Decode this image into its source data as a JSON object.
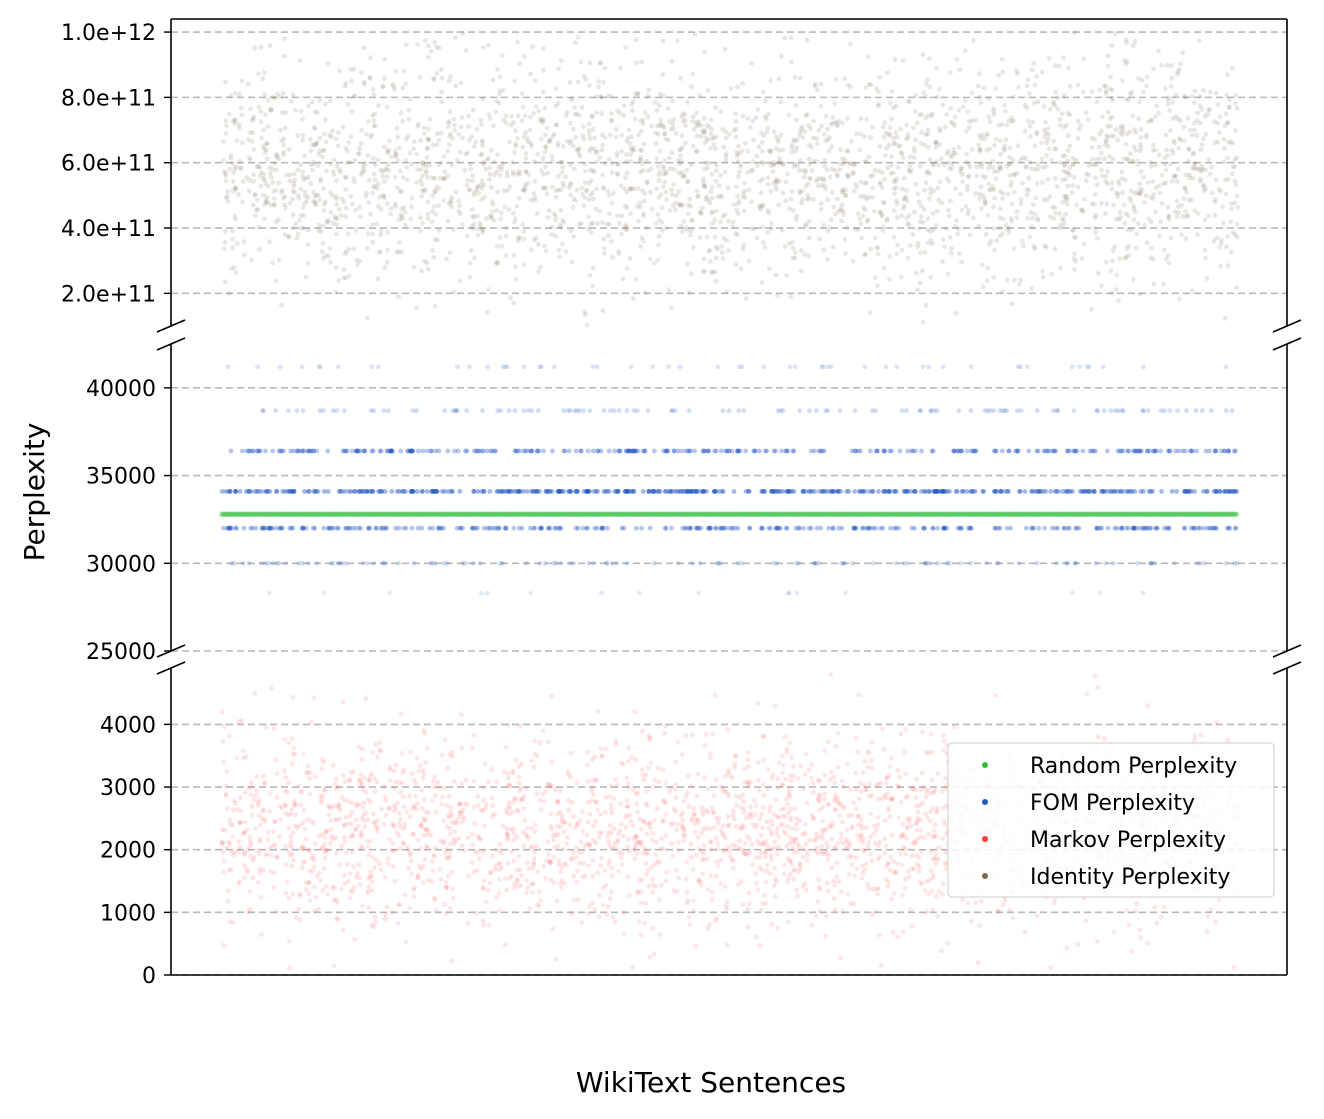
{
  "chart_data": {
    "type": "scatter",
    "ylabel": "Perplexity",
    "xlabel": "WikiText Sentences",
    "broken_axis": true,
    "grid": "horizontal dashed",
    "legend_position": "lower-right",
    "panels": [
      {
        "id": "top",
        "ylim": [
          100000000000,
          1040000000000
        ],
        "tick_values": [
          200000000000,
          400000000000,
          600000000000,
          800000000000,
          1000000000000
        ],
        "tick_labels": [
          "2.0e+11",
          "4.0e+11",
          "6.0e+11",
          "8.0e+11",
          "1.0e+12"
        ]
      },
      {
        "id": "middle",
        "ylim": [
          25000,
          42500
        ],
        "tick_values": [
          25000,
          30000,
          35000,
          40000
        ],
        "tick_labels": [
          "25000",
          "30000",
          "35000",
          "40000"
        ]
      },
      {
        "id": "bottom",
        "ylim": [
          0,
          4900
        ],
        "tick_values": [
          0,
          1000,
          2000,
          3000,
          4000
        ],
        "tick_labels": [
          "0",
          "1000",
          "2000",
          "3000",
          "4000"
        ]
      }
    ],
    "series": [
      {
        "name": "Random Perplexity",
        "color": "#2dbe3c",
        "panel": "middle",
        "pattern": "constant",
        "value": 32800
      },
      {
        "name": "FOM Perplexity",
        "color": "#2456c4",
        "panel": "middle",
        "pattern": "discrete levels",
        "levels": [
          {
            "value": 41200,
            "density": 0.1
          },
          {
            "value": 38700,
            "density": 0.22
          },
          {
            "value": 36400,
            "density": 0.6
          },
          {
            "value": 34100,
            "density": 0.85
          },
          {
            "value": 32000,
            "density": 0.6
          },
          {
            "value": 30000,
            "density": 0.22
          },
          {
            "value": 28300,
            "density": 0.03
          }
        ]
      },
      {
        "name": "Markov Perplexity",
        "color": "#ff3b3b",
        "panel": "bottom",
        "pattern": "scatter",
        "center": 2300,
        "spread": 750,
        "range": [
          100,
          4900
        ]
      },
      {
        "name": "Identity Perplexity",
        "color": "#7a6a4f",
        "panel": "top",
        "pattern": "scatter",
        "center": 580000000000,
        "spread": 170000000000,
        "range": [
          100000000000,
          1000000000000
        ]
      }
    ]
  }
}
